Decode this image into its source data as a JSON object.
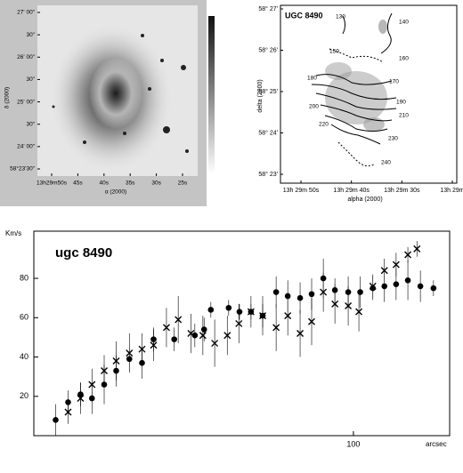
{
  "chart_data": [
    {
      "type": "image",
      "xlabel": "α (2000)",
      "ylabel": "δ (2000)",
      "xtick_labels": [
        "13h29m50s",
        "45s",
        "40s",
        "35s",
        "30s",
        "25s"
      ],
      "ytick_labels": [
        "27' 00\"",
        "30\"",
        "26' 00\"",
        "30\"",
        "25' 00\"",
        "30\"",
        "24' 00\"",
        "58°23'30\""
      ]
    },
    {
      "type": "contour",
      "title": "UGC 8490",
      "xlabel": "alpha (2000)",
      "ylabel": "delta (2000)",
      "xtick_labels": [
        "13h 29m 50s",
        "13h 29m 40s",
        "13h 29m 30s",
        "13h 29m"
      ],
      "ytick_labels": [
        "58° 27'",
        "58° 26'",
        "58° 25'",
        "58° 24'",
        "58° 23'"
      ],
      "contour_levels": [
        130,
        140,
        150,
        160,
        170,
        180,
        190,
        200,
        210,
        220,
        230,
        240
      ]
    },
    {
      "type": "scatter",
      "title": "ugc 8490",
      "ylabel": "Km/s",
      "xlabel": "arcsec",
      "xscale": "log",
      "xlim": [
        10,
        200
      ],
      "ylim": [
        0,
        104
      ],
      "xticks": [
        100
      ],
      "yticks": [
        20,
        40,
        60,
        80
      ],
      "series": [
        {
          "marker": "circle",
          "color": "#000000",
          "x": [
            11.7,
            12.8,
            14.0,
            15.2,
            16.6,
            18.1,
            19.9,
            21.8,
            23.7,
            27.5,
            31.9,
            34.1,
            35.8,
            40.7,
            44.0,
            47.8,
            52.0,
            57.3,
            62.3,
            68.1,
            74.0,
            80.5,
            87.5,
            96.3,
            105,
            115,
            125,
            136,
            148,
            162,
            178
          ],
          "values": [
            8,
            17,
            21,
            19,
            26,
            33,
            39,
            37,
            49,
            49,
            51,
            54,
            64,
            65,
            63,
            63,
            61,
            73,
            71,
            70,
            72,
            80,
            74,
            73,
            73,
            75,
            76,
            77,
            79,
            76,
            75
          ],
          "errors": [
            8,
            6,
            6,
            8,
            10,
            8,
            6,
            8,
            6,
            6,
            6,
            6,
            4,
            4,
            4,
            4,
            6,
            8,
            8,
            8,
            8,
            10,
            6,
            8,
            8,
            6,
            8,
            8,
            10,
            8,
            4
          ]
        },
        {
          "marker": "cross",
          "color": "#000000",
          "x": [
            12.8,
            14.0,
            15.2,
            16.6,
            18.1,
            19.9,
            21.8,
            23.7,
            26.0,
            28.3,
            31.0,
            33.8,
            36.8,
            40.3,
            43.8,
            47.8,
            52.0,
            57.3,
            62.3,
            68.1,
            74.0,
            80.5,
            87.5,
            96.3,
            104,
            115,
            125,
            136,
            148,
            158
          ],
          "values": [
            12,
            19,
            26,
            33,
            38,
            42,
            44,
            46,
            55,
            59,
            52,
            51,
            47,
            51,
            57,
            63,
            61,
            55,
            61,
            52,
            58,
            73,
            67,
            66,
            63,
            76,
            84,
            87,
            92,
            95
          ],
          "errors": [
            6,
            8,
            8,
            8,
            10,
            10,
            8,
            8,
            10,
            12,
            10,
            10,
            12,
            10,
            10,
            8,
            10,
            12,
            10,
            12,
            12,
            10,
            10,
            10,
            10,
            6,
            6,
            6,
            4,
            4
          ]
        }
      ]
    }
  ]
}
